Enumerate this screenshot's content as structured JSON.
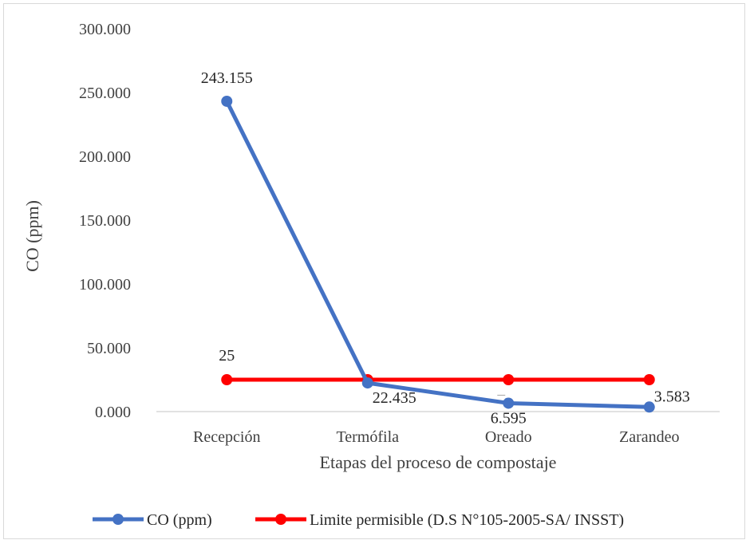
{
  "chart_data": {
    "type": "line",
    "categories": [
      "Recepción",
      "Termófila",
      "Oreado",
      "Zarandeo"
    ],
    "series": [
      {
        "name": "CO (ppm)",
        "values": [
          243.155,
          22.435,
          6.595,
          3.583
        ],
        "labels": [
          "243.155",
          "22.435",
          "6.595",
          "3.583"
        ],
        "color": "#4472c4"
      },
      {
        "name": "Limite permisible (D.S N°105-2005-SA/ INSST)",
        "values": [
          25,
          25,
          25,
          25
        ],
        "labels": [
          "25"
        ],
        "color": "#ff0000"
      }
    ],
    "xlabel": "Etapas del proceso de compostaje",
    "ylabel": "CO (ppm)",
    "ylim": [
      0,
      300
    ],
    "yticks": [
      "0.000",
      "50.000",
      "100.000",
      "150.000",
      "200.000",
      "250.000",
      "300.000"
    ],
    "grid": false,
    "legend_position": "bottom"
  }
}
